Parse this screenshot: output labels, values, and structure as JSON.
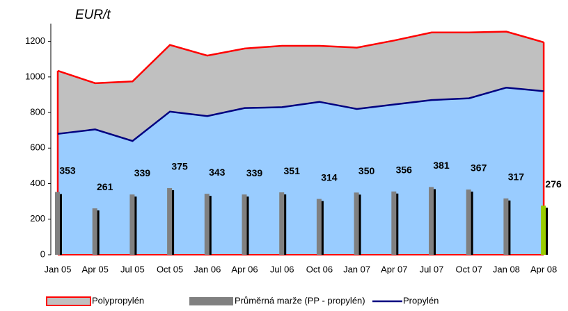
{
  "chart_data": {
    "type": "combo",
    "y_axis_label": "EUR/t",
    "categories": [
      "Jan 05",
      "Apr 05",
      "Jul 05",
      "Oct 05",
      "Jan 06",
      "Apr 06",
      "Jul 06",
      "Oct 06",
      "Jan 07",
      "Apr 07",
      "Jul 07",
      "Oct 07",
      "Jan 08",
      "Apr 08"
    ],
    "series": [
      {
        "name": "Polypropylén",
        "type": "area",
        "color": "#ff0000",
        "fill": "#c0c0c0",
        "values": [
          1035,
          965,
          975,
          1180,
          1120,
          1160,
          1175,
          1175,
          1165,
          1205,
          1250,
          1250,
          1255,
          1195
        ]
      },
      {
        "name": "Průměrná marže (PP - propylén)",
        "type": "bar",
        "color": "#808080",
        "colors": [
          "#808080",
          "#808080",
          "#808080",
          "#808080",
          "#808080",
          "#808080",
          "#808080",
          "#808080",
          "#808080",
          "#808080",
          "#808080",
          "#808080",
          "#808080",
          "#99cc00"
        ],
        "values": [
          353,
          261,
          339,
          375,
          343,
          339,
          351,
          314,
          350,
          356,
          381,
          367,
          317,
          276
        ]
      },
      {
        "name": "Propylén",
        "type": "line",
        "color": "#000080",
        "fill": "#99ccff",
        "values": [
          680,
          705,
          640,
          805,
          780,
          825,
          830,
          860,
          820,
          845,
          870,
          880,
          940,
          920
        ]
      }
    ],
    "ylim": [
      0,
      1300
    ],
    "yticks": [
      0,
      200,
      400,
      600,
      800,
      1000,
      1200
    ],
    "legend": "bottom"
  }
}
